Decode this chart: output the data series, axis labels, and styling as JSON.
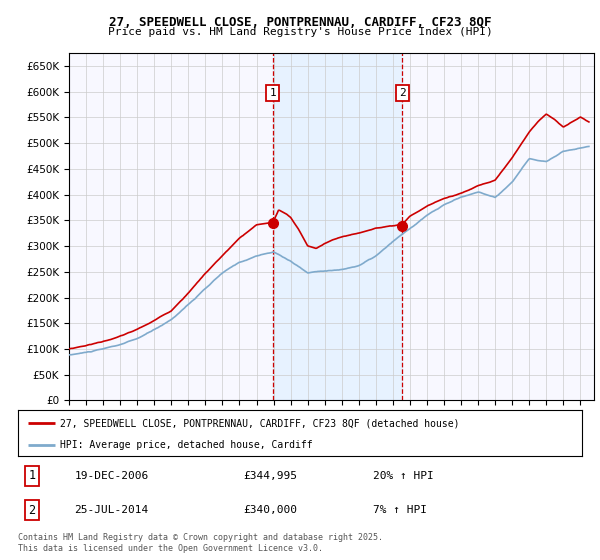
{
  "title_line1": "27, SPEEDWELL CLOSE, PONTPRENNAU, CARDIFF, CF23 8QF",
  "title_line2": "Price paid vs. HM Land Registry's House Price Index (HPI)",
  "background_color": "#ffffff",
  "grid_color": "#cccccc",
  "hpi_line_color": "#7faacc",
  "price_line_color": "#cc0000",
  "sale1_date": "19-DEC-2006",
  "sale1_price": 344995,
  "sale1_hpi": "20% ↑ HPI",
  "sale2_date": "25-JUL-2014",
  "sale2_price": 340000,
  "sale2_hpi": "7% ↑ HPI",
  "legend_line1": "27, SPEEDWELL CLOSE, PONTPRENNAU, CARDIFF, CF23 8QF (detached house)",
  "legend_line2": "HPI: Average price, detached house, Cardiff",
  "footnote": "Contains HM Land Registry data © Crown copyright and database right 2025.\nThis data is licensed under the Open Government Licence v3.0.",
  "ylim_min": 0,
  "ylim_max": 675000,
  "sale1_x": 2006.96,
  "sale2_x": 2014.56,
  "vspan_color": "#ddeeff",
  "vspan_alpha": 0.6
}
